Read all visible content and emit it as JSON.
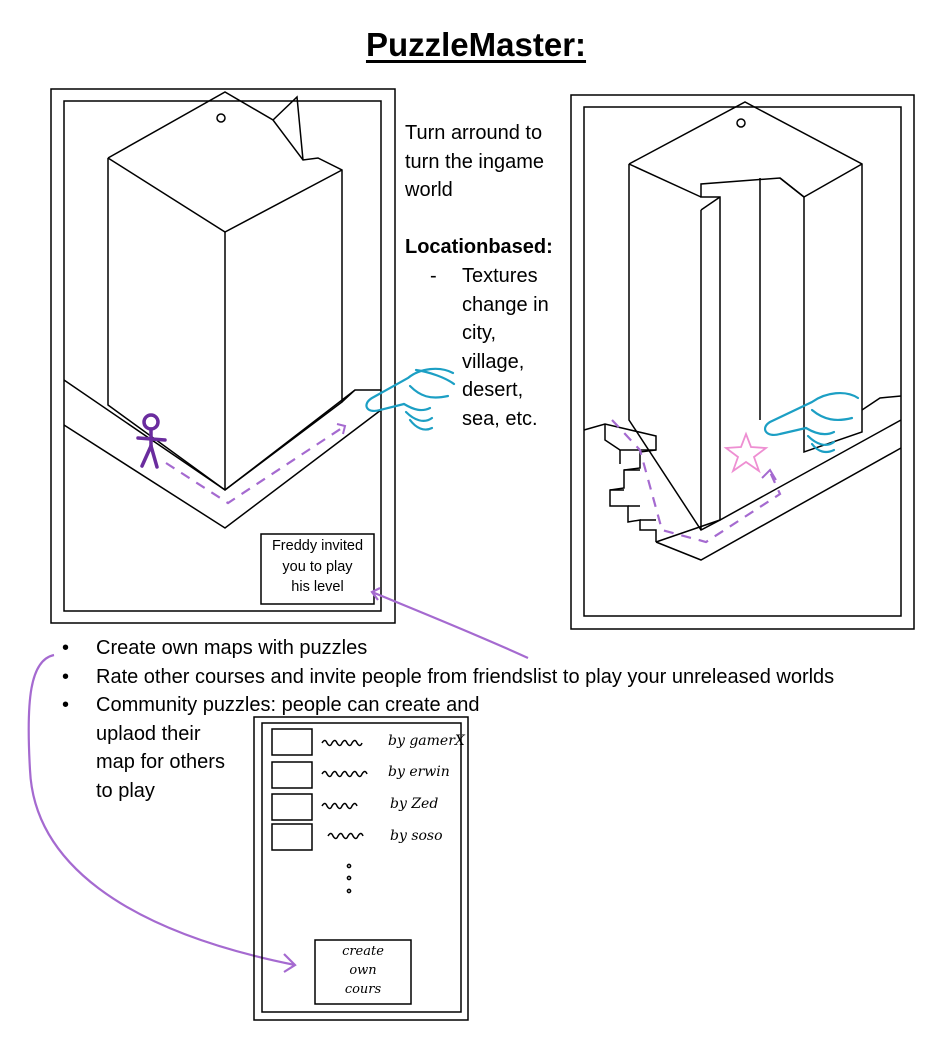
{
  "title": "PuzzleMaster:",
  "turn_note": [
    "Turn arround to",
    "turn the ingame",
    "world"
  ],
  "location_heading": "Locationbased:",
  "location_dash": "-",
  "location_text": [
    "Textures",
    "change in",
    "city,",
    "village,",
    "desert,",
    "sea, etc."
  ],
  "invite_popup": [
    "Freddy invited",
    "you to play",
    "his level"
  ],
  "bullets": [
    "Create own maps with puzzles",
    "Rate other courses and invite people from friendslist to play your unreleased worlds",
    "Community puzzles: people can create and"
  ],
  "bullet_continuation": [
    "uplaod their",
    "map for others",
    "to play"
  ],
  "community_list": [
    {
      "author": "by gamerX"
    },
    {
      "author": "by erwin"
    },
    {
      "author": "by Zed"
    },
    {
      "author": "by soso"
    }
  ],
  "create_button": [
    "create",
    "own",
    "cours"
  ],
  "colors": {
    "purple": "#7b2fa8",
    "lilac": "#a56ad0",
    "cyan": "#1c9fc4",
    "pink": "#ee8fd2"
  }
}
